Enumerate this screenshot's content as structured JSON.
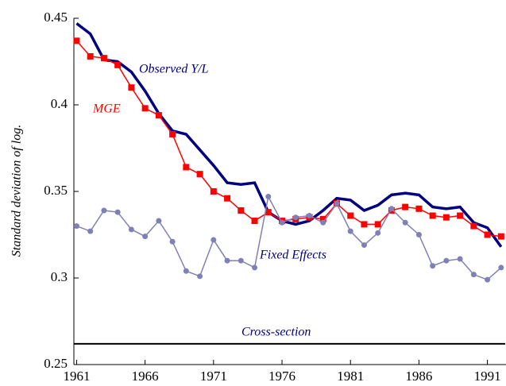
{
  "chart_data": {
    "type": "line",
    "y_label": "Standard deviation of log.",
    "x": [
      1961,
      1962,
      1963,
      1964,
      1965,
      1966,
      1967,
      1968,
      1969,
      1970,
      1971,
      1972,
      1973,
      1974,
      1975,
      1976,
      1977,
      1978,
      1979,
      1980,
      1981,
      1982,
      1983,
      1984,
      1985,
      1986,
      1987,
      1988,
      1989,
      1990,
      1991,
      1992
    ],
    "series": [
      {
        "name": "Observed Y/L",
        "color": "#000080",
        "marker": "none",
        "values": [
          0.447,
          0.441,
          0.426,
          0.425,
          0.419,
          0.408,
          0.395,
          0.385,
          0.383,
          0.374,
          0.365,
          0.355,
          0.354,
          0.355,
          0.338,
          0.333,
          0.331,
          0.333,
          0.339,
          0.346,
          0.345,
          0.339,
          0.342,
          0.348,
          0.349,
          0.348,
          0.341,
          0.34,
          0.341,
          0.332,
          0.329,
          0.318
        ]
      },
      {
        "name": "MGE",
        "color": "#ff0000",
        "marker": "square",
        "values": [
          0.437,
          0.428,
          0.427,
          0.423,
          0.41,
          0.398,
          0.394,
          0.383,
          0.364,
          0.36,
          0.35,
          0.346,
          0.339,
          0.333,
          0.338,
          0.333,
          0.334,
          0.335,
          0.334,
          0.343,
          0.336,
          0.331,
          0.331,
          0.339,
          0.341,
          0.34,
          0.336,
          0.335,
          0.336,
          0.33,
          0.325,
          0.324
        ]
      },
      {
        "name": "Fixed Effects",
        "color": "#8080b8",
        "marker": "circle",
        "values": [
          0.33,
          0.327,
          0.339,
          0.338,
          0.328,
          0.324,
          0.333,
          0.321,
          0.304,
          0.301,
          0.322,
          0.31,
          0.31,
          0.306,
          0.347,
          0.332,
          0.335,
          0.336,
          0.332,
          0.343,
          0.327,
          0.319,
          0.326,
          0.34,
          0.332,
          0.325,
          0.307,
          0.31,
          0.311,
          0.302,
          0.299,
          0.306
        ]
      }
    ],
    "reference_line": {
      "name": "Cross-section",
      "color": "#000000",
      "value": 0.262
    },
    "xlim": [
      1960.8,
      1992.3
    ],
    "xticks": [
      1961,
      1966,
      1971,
      1976,
      1981,
      1986,
      1991
    ],
    "ylim": [
      0.25,
      0.45
    ],
    "yticks": [
      0.25,
      0.3,
      0.35,
      0.4,
      0.45
    ]
  }
}
